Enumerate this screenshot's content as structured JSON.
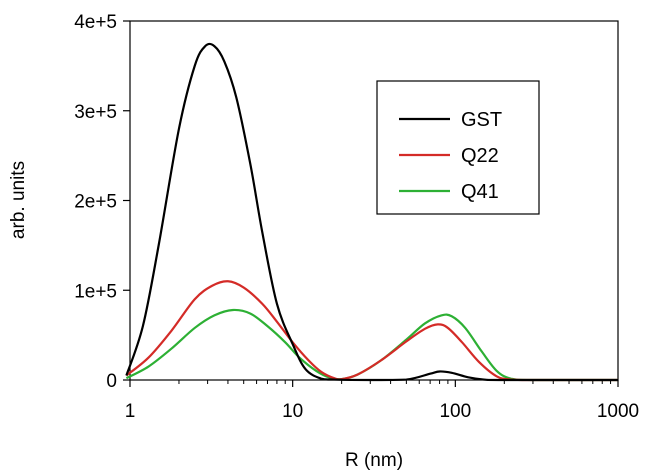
{
  "chart_data": {
    "type": "line",
    "xlabel": "R (nm)",
    "ylabel": "arb. units",
    "x_scale": "log",
    "xlim": [
      1,
      1000
    ],
    "ylim": [
      0,
      400000
    ],
    "x_ticks": [
      {
        "value": 1,
        "label": "1"
      },
      {
        "value": 10,
        "label": "10"
      },
      {
        "value": 100,
        "label": "100"
      },
      {
        "value": 1000,
        "label": "1000"
      }
    ],
    "y_ticks": [
      {
        "value": 0,
        "label": "0"
      },
      {
        "value": 100000,
        "label": "1e+5"
      },
      {
        "value": 200000,
        "label": "2e+5"
      },
      {
        "value": 300000,
        "label": "3e+5"
      },
      {
        "value": 400000,
        "label": "4e+5"
      }
    ],
    "grid": false,
    "legend_position": "top-right",
    "series": [
      {
        "name": "GST",
        "color": "#000000",
        "points": [
          [
            0.95,
            5000
          ],
          [
            1.2,
            60000
          ],
          [
            1.5,
            150000
          ],
          [
            2.0,
            280000
          ],
          [
            2.5,
            350000
          ],
          [
            2.9,
            372000
          ],
          [
            3.3,
            372000
          ],
          [
            3.8,
            355000
          ],
          [
            4.5,
            315000
          ],
          [
            5.5,
            240000
          ],
          [
            6.5,
            165000
          ],
          [
            8.0,
            85000
          ],
          [
            10,
            40000
          ],
          [
            12,
            12000
          ],
          [
            15,
            1500
          ],
          [
            18,
            500
          ],
          [
            30,
            0
          ],
          [
            50,
            500
          ],
          [
            70,
            7000
          ],
          [
            80,
            9500
          ],
          [
            95,
            8000
          ],
          [
            120,
            3000
          ],
          [
            150,
            500
          ],
          [
            200,
            0
          ],
          [
            1000,
            0
          ]
        ]
      },
      {
        "name": "Q22",
        "color": "#d42b27",
        "points": [
          [
            0.95,
            5000
          ],
          [
            1.3,
            25000
          ],
          [
            1.8,
            55000
          ],
          [
            2.5,
            90000
          ],
          [
            3.2,
            105000
          ],
          [
            4.0,
            110000
          ],
          [
            5.0,
            103000
          ],
          [
            6.5,
            85000
          ],
          [
            8.0,
            65000
          ],
          [
            10,
            42000
          ],
          [
            12.5,
            22000
          ],
          [
            15,
            9000
          ],
          [
            18,
            2000
          ],
          [
            20,
            1000
          ],
          [
            25,
            6000
          ],
          [
            35,
            22000
          ],
          [
            50,
            43000
          ],
          [
            65,
            57000
          ],
          [
            78,
            62000
          ],
          [
            90,
            58000
          ],
          [
            110,
            42000
          ],
          [
            140,
            20000
          ],
          [
            180,
            4000
          ],
          [
            220,
            500
          ],
          [
            300,
            0
          ],
          [
            1000,
            0
          ]
        ]
      },
      {
        "name": "Q41",
        "color": "#2db034",
        "points": [
          [
            0.95,
            2000
          ],
          [
            1.3,
            15000
          ],
          [
            1.8,
            35000
          ],
          [
            2.5,
            58000
          ],
          [
            3.3,
            72000
          ],
          [
            4.3,
            78000
          ],
          [
            5.5,
            74000
          ],
          [
            7.0,
            60000
          ],
          [
            9.0,
            42000
          ],
          [
            11,
            25000
          ],
          [
            14,
            10000
          ],
          [
            17,
            2500
          ],
          [
            20,
            1000
          ],
          [
            25,
            6000
          ],
          [
            35,
            22000
          ],
          [
            50,
            45000
          ],
          [
            65,
            63000
          ],
          [
            82,
            72000
          ],
          [
            95,
            71000
          ],
          [
            115,
            58000
          ],
          [
            145,
            32000
          ],
          [
            180,
            10000
          ],
          [
            220,
            1500
          ],
          [
            300,
            0
          ],
          [
            1000,
            0
          ]
        ]
      }
    ]
  }
}
